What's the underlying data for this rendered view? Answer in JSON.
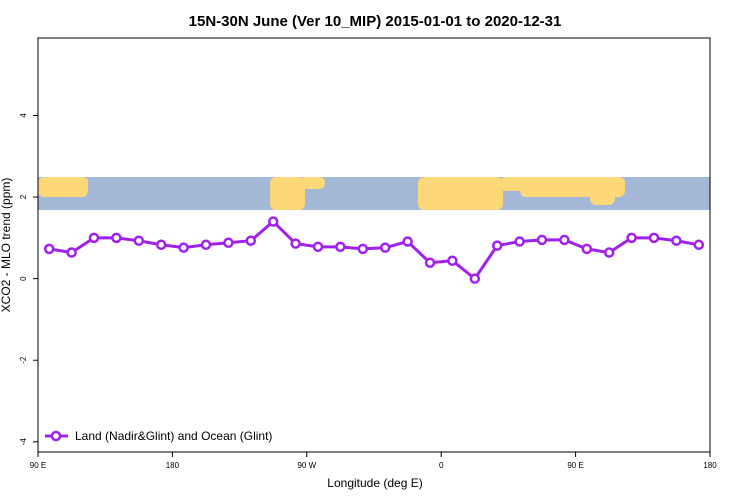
{
  "chart_data": {
    "type": "line",
    "title": "15N-30N June (Ver 10_MIP)   2015-01-01 to 2020-12-31",
    "x_label": "Longitude (deg E)",
    "y_label": "XCO2 - MLO trend (ppm)",
    "x": [
      97.5,
      112.5,
      127.5,
      142.5,
      157.5,
      172.5,
      187.5,
      202.5,
      217.5,
      232.5,
      247.5,
      262.5,
      277.5,
      292.5,
      307.5,
      322.5,
      337.5,
      352.5,
      367.5,
      382.5,
      397.5,
      412.5,
      427.5,
      442.5,
      457.5,
      472.5,
      487.5,
      502.5,
      517.5,
      532.5
    ],
    "series": [
      {
        "name": "Land (Nadir&Glint) and Ocean (Glint)",
        "color": "#a020f0",
        "values": [
          0.73,
          0.64,
          1.0,
          1.0,
          0.93,
          0.83,
          0.76,
          0.83,
          0.88,
          0.93,
          1.4,
          0.86,
          0.78,
          0.78,
          0.73,
          0.76,
          0.91,
          0.39,
          0.44,
          0.0,
          0.81,
          0.91,
          0.95,
          0.95,
          0.73,
          0.64,
          1.0,
          1.0,
          0.93,
          0.83
        ]
      }
    ],
    "xlim": [
      90,
      540
    ],
    "xticks": [
      {
        "value": 90,
        "label": "90 E"
      },
      180,
      {
        "value": 270,
        "label": "90 W"
      },
      {
        "value": 360,
        "label": "0"
      },
      {
        "value": 450,
        "label": "90 E"
      },
      {
        "value": 540,
        "label": "180"
      }
    ],
    "ylim": [
      -4.25,
      5.9
    ],
    "yticks": [
      -4,
      -2,
      0,
      2,
      4
    ],
    "legend": "bottom-left"
  }
}
